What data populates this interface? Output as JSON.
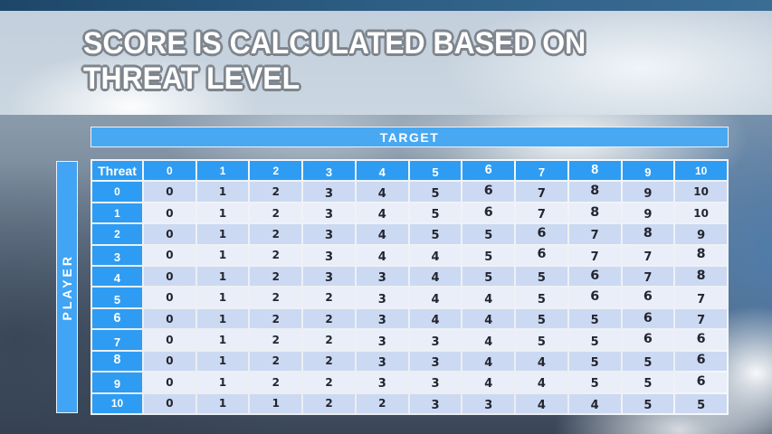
{
  "slide": {
    "title_lines": [
      "SCORE IS CALCULATED BASED ON",
      "THREAT LEVEL"
    ]
  },
  "chart_data": {
    "type": "table",
    "title": "SCORE IS CALCULATED BASED ON THREAT LEVEL",
    "column_group_label": "TARGET",
    "row_group_label": "PLAYER",
    "corner_label": "Threat",
    "column_headers": [
      "0",
      "1",
      "2",
      "3",
      "4",
      "5",
      "6",
      "7",
      "8",
      "9",
      "10"
    ],
    "row_headers": [
      "0",
      "1",
      "2",
      "3",
      "4",
      "5",
      "6",
      "7",
      "8",
      "9",
      "10"
    ],
    "rows": [
      [
        0,
        1,
        2,
        3,
        4,
        5,
        6,
        7,
        8,
        9,
        10
      ],
      [
        0,
        1,
        2,
        3,
        4,
        5,
        6,
        7,
        8,
        9,
        10
      ],
      [
        0,
        1,
        2,
        3,
        4,
        5,
        5,
        6,
        7,
        8,
        9
      ],
      [
        0,
        1,
        2,
        3,
        4,
        4,
        5,
        6,
        7,
        7,
        8
      ],
      [
        0,
        1,
        2,
        3,
        3,
        4,
        5,
        5,
        6,
        7,
        8
      ],
      [
        0,
        1,
        2,
        2,
        3,
        4,
        4,
        5,
        6,
        6,
        7
      ],
      [
        0,
        1,
        2,
        2,
        3,
        4,
        4,
        5,
        5,
        6,
        7
      ],
      [
        0,
        1,
        2,
        2,
        3,
        3,
        4,
        5,
        5,
        6,
        6
      ],
      [
        0,
        1,
        2,
        2,
        3,
        3,
        4,
        4,
        5,
        5,
        6
      ],
      [
        0,
        1,
        2,
        2,
        3,
        3,
        4,
        4,
        5,
        5,
        6
      ],
      [
        0,
        1,
        1,
        2,
        2,
        3,
        3,
        4,
        4,
        5,
        5
      ]
    ]
  },
  "colors": {
    "accent_blue": "#2E9CF3",
    "bar_blue": "#48A8F2",
    "row_band_dark": "#CCD9F2",
    "row_band_light": "#E9EEF9",
    "cell_text": "#23252F",
    "title_fill": "#FFFFFF",
    "title_outline": "#7E858D",
    "top_strip": "#2E5E85"
  }
}
